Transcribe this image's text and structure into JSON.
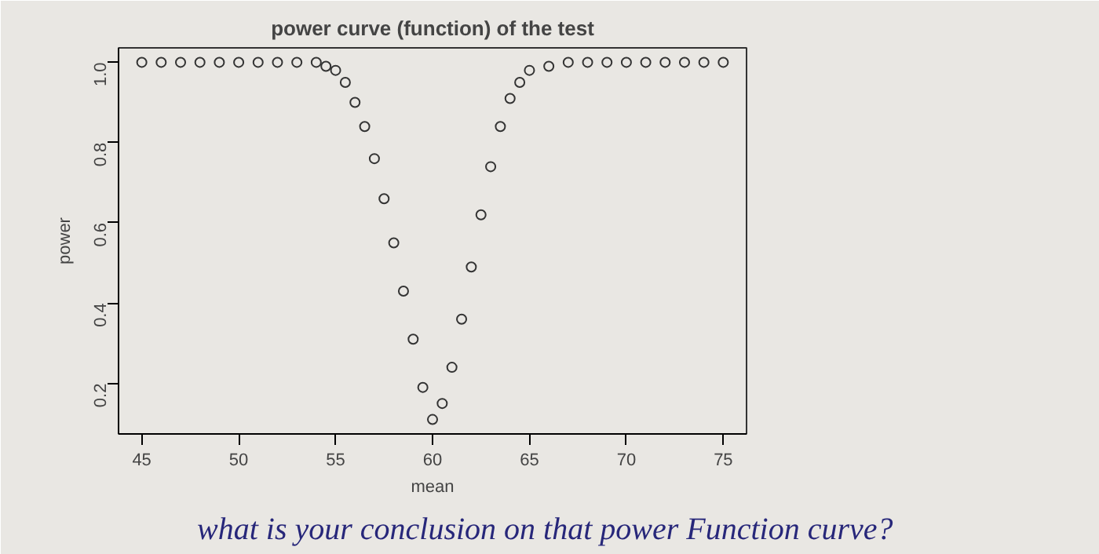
{
  "chart_data": {
    "type": "scatter",
    "title": "power curve (function) of the test",
    "xlabel": "mean",
    "ylabel": "power",
    "x": [
      45,
      46,
      47,
      48,
      49,
      50,
      51,
      52,
      53,
      54,
      54.5,
      55,
      55.5,
      56,
      56.5,
      57,
      57.5,
      58,
      58.5,
      59,
      59.5,
      60,
      60.5,
      61,
      61.5,
      62,
      62.5,
      63,
      63.5,
      64,
      64.5,
      65,
      66,
      67,
      68,
      69,
      70,
      71,
      72,
      73,
      74,
      75
    ],
    "series": [
      {
        "color": "#333333",
        "values": [
          1,
          1,
          1,
          1,
          1,
          1,
          1,
          1,
          1,
          1,
          0.99,
          0.98,
          0.95,
          0.9,
          0.84,
          0.76,
          0.66,
          0.55,
          0.43,
          0.31,
          0.19,
          0.11,
          0.15,
          0.24,
          0.36,
          0.49,
          0.62,
          0.74,
          0.84,
          0.91,
          0.95,
          0.98,
          0.99,
          1,
          1,
          1,
          1,
          1,
          1,
          1,
          1,
          1
        ]
      }
    ],
    "xlim": [
      43.8,
      76.2
    ],
    "ylim": [
      0.074,
      1.036
    ],
    "xticks": [
      45,
      50,
      55,
      60,
      65,
      70,
      75
    ],
    "yticks": [
      0.2,
      0.4,
      0.6,
      0.8,
      {
        "value": 1,
        "label": "1.0"
      }
    ],
    "marker": "circle",
    "grid": false,
    "annotations": [
      "what is your conclusion on that power Function curve?"
    ]
  }
}
